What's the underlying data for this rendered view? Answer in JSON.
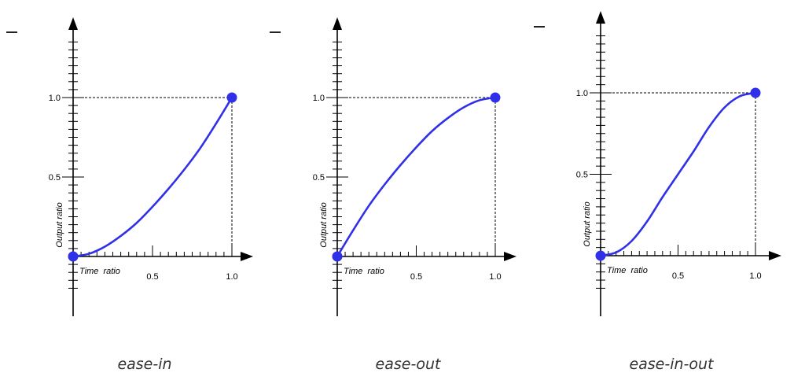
{
  "chart_data": [
    {
      "type": "line",
      "x": [
        0,
        0.1,
        0.2,
        0.3,
        0.4,
        0.5,
        0.6,
        0.7,
        0.8,
        0.9,
        1.0
      ],
      "series": [
        {
          "values": [
            0,
            0.017,
            0.062,
            0.129,
            0.211,
            0.313,
            0.425,
            0.547,
            0.681,
            0.836,
            1.0
          ]
        }
      ],
      "xlabel": "Time  ratio",
      "ylabel": "Output ratio",
      "xticks": [
        "0.5",
        "1.0"
      ],
      "yticks": [
        "0.5",
        "1.0"
      ],
      "xlim": [
        0,
        1
      ],
      "ylim": [
        0,
        1
      ],
      "caption": "ease-in",
      "color": "#3030e8"
    },
    {
      "type": "line",
      "x": [
        0,
        0.1,
        0.2,
        0.3,
        0.4,
        0.5,
        0.6,
        0.7,
        0.8,
        0.9,
        1.0
      ],
      "series": [
        {
          "values": [
            0,
            0.164,
            0.319,
            0.453,
            0.575,
            0.687,
            0.789,
            0.871,
            0.938,
            0.983,
            1.0
          ]
        }
      ],
      "xlabel": "Time  ratio",
      "ylabel": "Output ratio",
      "xticks": [
        "0.5",
        "1.0"
      ],
      "yticks": [
        "0.5",
        "1.0"
      ],
      "xlim": [
        0,
        1
      ],
      "ylim": [
        0,
        1
      ],
      "caption": "ease-out",
      "color": "#3030e8"
    },
    {
      "type": "line",
      "x": [
        0,
        0.1,
        0.2,
        0.3,
        0.4,
        0.5,
        0.6,
        0.7,
        0.8,
        0.9,
        1.0
      ],
      "series": [
        {
          "values": [
            0,
            0.02,
            0.09,
            0.21,
            0.36,
            0.5,
            0.64,
            0.79,
            0.91,
            0.98,
            1.0
          ]
        }
      ],
      "xlabel": "Time  ratio",
      "ylabel": "Output ratio",
      "xticks": [
        "0.5",
        "1.0"
      ],
      "yticks": [
        "0.5",
        "1.0"
      ],
      "xlim": [
        0,
        1
      ],
      "ylim": [
        0,
        1
      ],
      "caption": "ease-in-out",
      "color": "#3030e8"
    }
  ]
}
